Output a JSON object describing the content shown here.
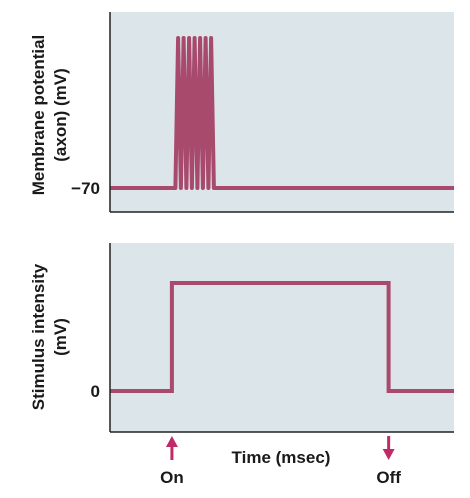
{
  "chart_data": [
    {
      "type": "line",
      "ylabel_line1": "Membrane potential",
      "ylabel_line2": "(axon) (mV)",
      "ytick_labels": [
        "−70"
      ],
      "xlim": [
        0,
        100
      ],
      "series": [
        {
          "x": [
            0,
            19.0,
            19.8,
            20.6,
            21.4,
            22.2,
            23.0,
            23.8,
            24.6,
            25.4,
            26.2,
            27.0,
            27.8,
            28.6,
            29.4,
            30.2,
            100
          ],
          "y": [
            -70,
            -70,
            20,
            -70,
            20,
            -70,
            20,
            -70,
            20,
            -70,
            20,
            -70,
            20,
            -70,
            20,
            -70,
            -70
          ]
        }
      ]
    },
    {
      "type": "line",
      "ylabel_line1": "Stimulus intensity",
      "ylabel_line2": "(mV)",
      "ytick_labels": [
        "0"
      ],
      "xlabel": "Time (msec)",
      "xlim": [
        0,
        100
      ],
      "series": [
        {
          "x": [
            0,
            18,
            18,
            81,
            81,
            100
          ],
          "y": [
            0,
            0,
            1,
            1,
            0,
            0
          ]
        }
      ],
      "markers": [
        {
          "x": 18,
          "label": "On",
          "direction": "up"
        },
        {
          "x": 81,
          "label": "Off",
          "direction": "down"
        }
      ]
    }
  ],
  "colors": {
    "panel_bg": "#dce5ea",
    "trace": "#a84a6c",
    "arrow": "#c02a6a",
    "axis": "#222222"
  }
}
